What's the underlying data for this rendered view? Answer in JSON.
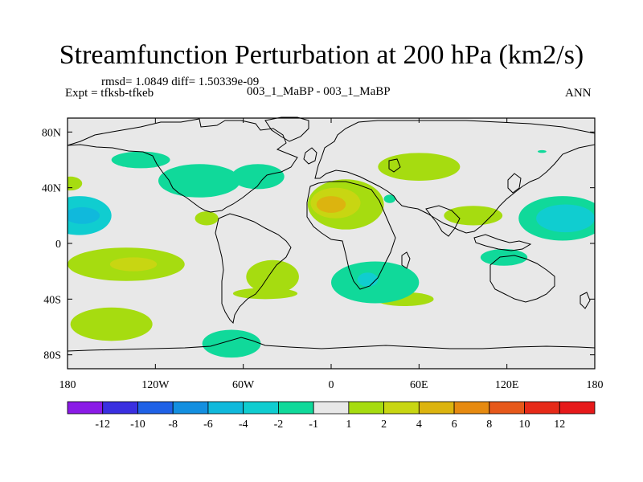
{
  "title": "Streamfunction Perturbation at 200 hPa (km2/s)",
  "stats": "rmsd= 1.0849 diff= 1.50339e-09",
  "experiment": "Expt = tfksb-tfkeb",
  "comparison": "003_1_MaBP - 003_1_MaBP",
  "period": "ANN",
  "axes": {
    "lat_labels": [
      "80N",
      "40N",
      "0",
      "40S",
      "80S"
    ],
    "lon_labels": [
      "180",
      "120W",
      "60W",
      "0",
      "60E",
      "120E",
      "180"
    ]
  },
  "colorbar": {
    "labels": [
      "-12",
      "-10",
      "-8",
      "-6",
      "-4",
      "-2",
      "-1",
      "1",
      "2",
      "4",
      "6",
      "8",
      "10",
      "12"
    ],
    "colors": [
      "#8a1ae6",
      "#3a2fe0",
      "#1f61e6",
      "#138fe0",
      "#10b9dc",
      "#10cdd0",
      "#10d99a",
      "#e8e8e8",
      "#a6dc10",
      "#c8d612",
      "#dcb40f",
      "#e68a10",
      "#e6581a",
      "#e62a18",
      "#e6191a"
    ]
  },
  "chart_data": {
    "type": "heatmap",
    "title": "Streamfunction Perturbation at 200 hPa (km2/s)",
    "xlim": [
      -180,
      180
    ],
    "ylim": [
      -90,
      90
    ],
    "levels": [
      -12,
      -10,
      -8,
      -6,
      -4,
      -2,
      -1,
      1,
      2,
      4,
      6,
      8,
      10,
      12
    ],
    "anomalies": [
      {
        "name": "pac-west-neg",
        "lon": -172,
        "lat": 20,
        "rlon": 22,
        "rlat": 14,
        "level": -2
      },
      {
        "name": "pac-west-neg-core",
        "lon": -170,
        "lat": 20,
        "rlon": 12,
        "rlat": 6,
        "level": -4
      },
      {
        "name": "pac-north-neg",
        "lon": -130,
        "lat": 60,
        "rlon": 20,
        "rlat": 6,
        "level": -1
      },
      {
        "name": "pac-center-neg",
        "lon": -90,
        "lat": 45,
        "rlon": 28,
        "rlat": 12,
        "level": -1
      },
      {
        "name": "atlantic-neg",
        "lon": -50,
        "lat": 48,
        "rlon": 18,
        "rlat": 9,
        "level": -1
      },
      {
        "name": "pac-north-pos-west",
        "lon": -178,
        "lat": 43,
        "rlon": 8,
        "rlat": 5,
        "level": 1
      },
      {
        "name": "mexico-pos",
        "lon": -85,
        "lat": 18,
        "rlon": 8,
        "rlat": 5,
        "level": 1
      },
      {
        "name": "south-pacific-pos",
        "lon": -140,
        "lat": -15,
        "rlon": 40,
        "rlat": 12,
        "level": 1
      },
      {
        "name": "south-pacific-pos-core",
        "lon": -135,
        "lat": -15,
        "rlon": 16,
        "rlat": 5,
        "level": 2
      },
      {
        "name": "south-america-pos",
        "lon": -40,
        "lat": -24,
        "rlon": 18,
        "rlat": 12,
        "level": 1
      },
      {
        "name": "south-atlantic-pos",
        "lon": -45,
        "lat": -36,
        "rlon": 22,
        "rlat": 4,
        "level": 1
      },
      {
        "name": "africa-europe-pos",
        "lon": 10,
        "lat": 28,
        "rlon": 26,
        "rlat": 18,
        "level": 1
      },
      {
        "name": "africa-europe-pos-2",
        "lon": 3,
        "lat": 29,
        "rlon": 17,
        "rlat": 11,
        "level": 2
      },
      {
        "name": "africa-europe-pos-core",
        "lon": 0,
        "lat": 28,
        "rlon": 10,
        "rlat": 6,
        "level": 4
      },
      {
        "name": "siberia-pos",
        "lon": 60,
        "lat": 55,
        "rlon": 28,
        "rlat": 10,
        "level": 1
      },
      {
        "name": "asia-pos",
        "lon": 97,
        "lat": 20,
        "rlon": 20,
        "rlat": 7,
        "level": 1
      },
      {
        "name": "southern-indian-pos",
        "lon": -150,
        "lat": -58,
        "rlon": 28,
        "rlat": 12,
        "level": 1
      },
      {
        "name": "indian-ocean-pos",
        "lon": 50,
        "lat": -40,
        "rlon": 20,
        "rlat": 5,
        "level": 1
      },
      {
        "name": "south-africa-neg",
        "lon": 30,
        "lat": -28,
        "rlon": 30,
        "rlat": 15,
        "level": -1
      },
      {
        "name": "south-africa-neg-core",
        "lon": 25,
        "lat": -26,
        "rlon": 7,
        "rlat": 5,
        "level": -2
      },
      {
        "name": "australia-neg",
        "lon": 118,
        "lat": -10,
        "rlon": 16,
        "rlat": 6,
        "level": -1
      },
      {
        "name": "pac-east-neg",
        "lon": 158,
        "lat": 18,
        "rlon": 30,
        "rlat": 16,
        "level": -1
      },
      {
        "name": "pac-east-neg-core",
        "lon": 160,
        "lat": 18,
        "rlon": 20,
        "rlat": 10,
        "level": -2
      },
      {
        "name": "antarctic-neg",
        "lon": -68,
        "lat": -72,
        "rlon": 20,
        "rlat": 10,
        "level": -1
      },
      {
        "name": "red-sea-neg",
        "lon": 40,
        "lat": 32,
        "rlon": 4,
        "rlat": 3,
        "level": -1
      },
      {
        "name": "pac-far-east-small",
        "lon": 144,
        "lat": 66,
        "rlon": 3,
        "rlat": 1,
        "level": -1
      }
    ]
  }
}
